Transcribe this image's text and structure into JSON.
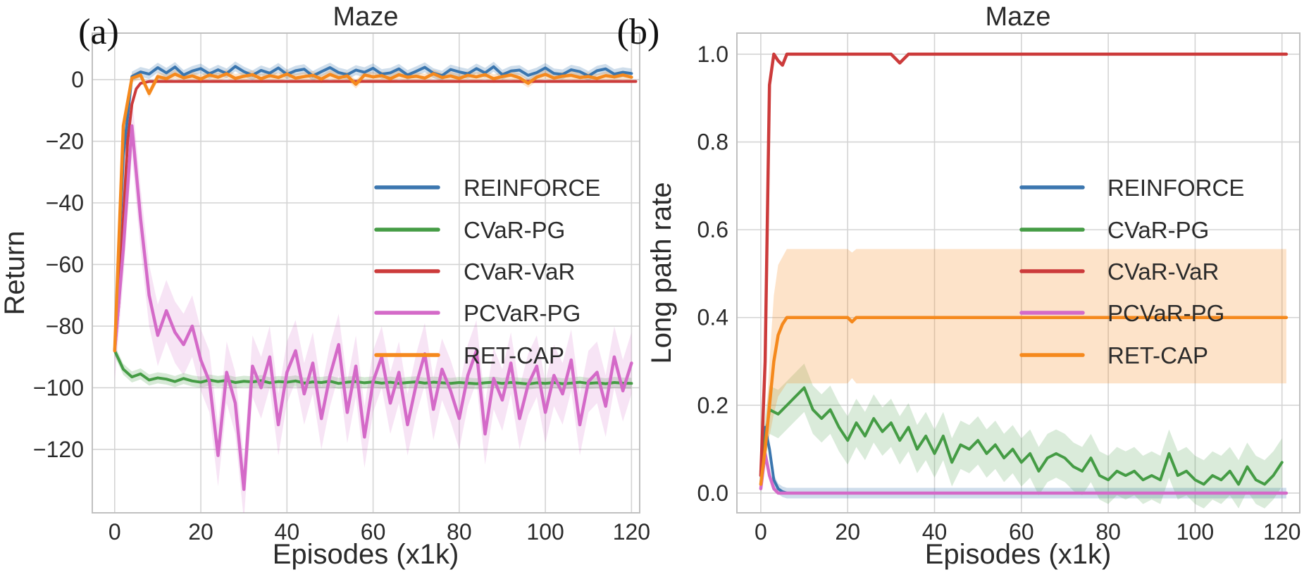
{
  "figure": {
    "background": "#ffffff",
    "grid_color": "#d4d4d4",
    "spine_color": "#c0c0c0",
    "text_color": "#2b2b2b"
  },
  "chart_data": [
    {
      "id": "a",
      "type": "line",
      "panel_letter": "(a)",
      "title": "Maze",
      "xlabel": "Episodes (x1k)",
      "ylabel": "Return",
      "xlim": [
        -5.2,
        121.9
      ],
      "ylim": [
        -140.6,
        15.1
      ],
      "grid": true,
      "legend_position": "center-right-inside",
      "xticks": {
        "values": [
          0,
          20,
          40,
          60,
          80,
          100,
          120
        ],
        "labels": [
          "0",
          "20",
          "40",
          "60",
          "80",
          "100",
          "120"
        ]
      },
      "yticks": {
        "values": [
          0,
          -20,
          -40,
          -60,
          -80,
          -100,
          -120
        ],
        "labels": [
          "0",
          "−20",
          "−40",
          "−60",
          "−80",
          "−100",
          "−120"
        ]
      },
      "legend": [
        {
          "label": "REINFORCE",
          "color": "#3b76af"
        },
        {
          "label": "CVaR-PG",
          "color": "#459c45"
        },
        {
          "label": "CVaR-VaR",
          "color": "#cc3b3b"
        },
        {
          "label": "PCVaR-PG",
          "color": "#d46ac8"
        },
        {
          "label": "RET-CAP",
          "color": "#f5891d"
        }
      ],
      "series": [
        {
          "name": "REINFORCE",
          "color": "#3b76af",
          "width": 4,
          "x": {
            "start": 0,
            "step": 2
          },
          "y": [
            -88,
            -25,
            1.0,
            2.5,
            1.8,
            3.9,
            2.2,
            4.1,
            1.5,
            2.8,
            3.6,
            1.9,
            3.2,
            2.0,
            4.3,
            2.6,
            1.4,
            3.0,
            2.1,
            3.8,
            1.7,
            2.9,
            3.4,
            1.2,
            2.6,
            3.9,
            2.3,
            1.6,
            3.1,
            2.4,
            3.7,
            1.8,
            2.2,
            3.5,
            1.5,
            2.7,
            4.0,
            2.1,
            1.3,
            3.3,
            2.5,
            1.9,
            3.6,
            2.2,
            4.2,
            1.6,
            2.8,
            3.1,
            1.4,
            2.3,
            3.8,
            2.0,
            1.7,
            3.2,
            2.6,
            1.2,
            2.9,
            3.5,
            1.8,
            2.4,
            2.0
          ],
          "band": {
            "hw": 1.6,
            "alpha": 0.25
          }
        },
        {
          "name": "CVaR-PG",
          "color": "#459c45",
          "width": 4,
          "x": {
            "start": 0,
            "step": 2
          },
          "y": [
            -88,
            -94,
            -96.5,
            -95.5,
            -97.5,
            -96.8,
            -97.2,
            -98,
            -97,
            -97.8,
            -98.2,
            -97.5,
            -98,
            -97.6,
            -98.3,
            -97.9,
            -98.1,
            -97.7,
            -98.4,
            -98,
            -98.2,
            -97.8,
            -98.5,
            -98.1,
            -98.3,
            -97.9,
            -98.6,
            -98.2,
            -98,
            -98.4,
            -98.1,
            -98.5,
            -98.2,
            -98.6,
            -98.3,
            -98.1,
            -98.5,
            -98.2,
            -98.4,
            -98.6,
            -98.3,
            -98.5,
            -98.7,
            -98.4,
            -98.2,
            -98.6,
            -98.3,
            -98.5,
            -98.8,
            -98.4,
            -98.6,
            -98.3,
            -98.7,
            -98.5,
            -98.2,
            -98.6,
            -98.4,
            -98.7,
            -98.3,
            -98.5,
            -98.6
          ],
          "band": {
            "hw": 1.8,
            "alpha": 0.22
          }
        },
        {
          "name": "CVaR-VaR",
          "color": "#cc3b3b",
          "width": 4,
          "x": [
            0,
            1,
            2,
            3,
            4,
            5,
            6,
            8,
            121
          ],
          "y": [
            -88,
            -72,
            -45,
            -20,
            -8,
            -3,
            -1.2,
            -0.6,
            -0.6
          ]
        },
        {
          "name": "PCVaR-PG",
          "color": "#d46ac8",
          "width": 4.5,
          "x": {
            "start": 0,
            "step": 2
          },
          "y": [
            -88,
            -55,
            -15,
            -45,
            -70,
            -83,
            -75,
            -82,
            -86,
            -80,
            -91,
            -98,
            -122,
            -95,
            -105,
            -133,
            -93,
            -100,
            -90,
            -112,
            -95,
            -88,
            -102,
            -92,
            -110,
            -96,
            -86,
            -108,
            -93,
            -116,
            -98,
            -90,
            -105,
            -95,
            -112,
            -99,
            -89,
            -107,
            -94,
            -101,
            -110,
            -96,
            -88,
            -115,
            -97,
            -104,
            -92,
            -110,
            -99,
            -93,
            -108,
            -96,
            -102,
            -91,
            -112,
            -98,
            -95,
            -106,
            -90,
            -101,
            -92
          ],
          "band": {
            "hw": 10,
            "alpha": 0.18
          }
        },
        {
          "name": "RET-CAP",
          "color": "#f5891d",
          "width": 4.5,
          "x": {
            "start": 0,
            "step": 2
          },
          "y": [
            -88,
            -15,
            0.5,
            1.5,
            -4.5,
            1.0,
            0.3,
            1.8,
            0.6,
            1.2,
            0.2,
            1.5,
            0.8,
            1.9,
            0.4,
            1.1,
            1.6,
            0.3,
            1.3,
            0.7,
            1.8,
            0.5,
            1.0,
            1.4,
            0.2,
            1.7,
            0.6,
            1.2,
            -1.5,
            1.5,
            0.9,
            1.3,
            0.3,
            1.6,
            0.8,
            1.1,
            0.5,
            1.9,
            0.7,
            1.2,
            0.4,
            1.4,
            0.9,
            1.6,
            0.3,
            1.0,
            1.5,
            0.6,
            -1.2,
            0.8,
            1.7,
            0.5,
            1.1,
            1.4,
            0.7,
            1.0,
            0.4,
            1.3,
            0.9,
            1.5,
            0.8
          ],
          "band": {
            "hw": 1.4,
            "alpha": 0.22
          }
        }
      ]
    },
    {
      "id": "b",
      "type": "line",
      "panel_letter": "(b)",
      "title": "Maze",
      "xlabel": "Episodes (x1k)",
      "ylabel": "Long path rate",
      "xlim": [
        -5.5,
        124.1
      ],
      "ylim": [
        -0.045,
        1.048
      ],
      "grid": true,
      "legend_position": "center-right-inside",
      "xticks": {
        "values": [
          0,
          20,
          40,
          60,
          80,
          100,
          120
        ],
        "labels": [
          "0",
          "20",
          "40",
          "60",
          "80",
          "100",
          "120"
        ]
      },
      "yticks": {
        "values": [
          0.0,
          0.2,
          0.4,
          0.6,
          0.8,
          1.0
        ],
        "labels": [
          "0.0",
          "0.2",
          "0.4",
          "0.6",
          "0.8",
          "1.0"
        ]
      },
      "legend": [
        {
          "label": "REINFORCE",
          "color": "#3b76af"
        },
        {
          "label": "CVaR-PG",
          "color": "#459c45"
        },
        {
          "label": "CVaR-VaR",
          "color": "#cc3b3b"
        },
        {
          "label": "PCVaR-PG",
          "color": "#d46ac8"
        },
        {
          "label": "RET-CAP",
          "color": "#f5891d"
        }
      ],
      "series": [
        {
          "name": "REINFORCE",
          "color": "#3b76af",
          "width": 4,
          "x": [
            0,
            1,
            2,
            3,
            4,
            5,
            6,
            121
          ],
          "y": [
            0.02,
            0.15,
            0.1,
            0.03,
            0.01,
            0.003,
            0.0,
            0.0
          ],
          "band": {
            "hw": 0.012,
            "alpha": 0.25
          }
        },
        {
          "name": "CVaR-PG",
          "color": "#459c45",
          "width": 4,
          "x": {
            "start": 0,
            "step": 2
          },
          "y": [
            0.05,
            0.19,
            0.18,
            0.2,
            0.22,
            0.24,
            0.19,
            0.17,
            0.19,
            0.15,
            0.12,
            0.16,
            0.13,
            0.17,
            0.14,
            0.16,
            0.12,
            0.15,
            0.1,
            0.13,
            0.09,
            0.13,
            0.07,
            0.11,
            0.1,
            0.12,
            0.09,
            0.11,
            0.08,
            0.1,
            0.07,
            0.09,
            0.05,
            0.08,
            0.09,
            0.08,
            0.06,
            0.05,
            0.08,
            0.04,
            0.03,
            0.05,
            0.04,
            0.05,
            0.03,
            0.04,
            0.03,
            0.09,
            0.04,
            0.05,
            0.03,
            0.02,
            0.04,
            0.03,
            0.05,
            0.02,
            0.06,
            0.03,
            0.02,
            0.04,
            0.07
          ],
          "band": {
            "hw": 0.055,
            "alpha": 0.2
          }
        },
        {
          "name": "CVaR-VaR",
          "color": "#cc3b3b",
          "width": 4.5,
          "x": [
            0,
            1,
            2,
            3,
            4,
            5,
            6,
            8,
            30,
            32,
            34,
            121
          ],
          "y": [
            0.04,
            0.3,
            0.93,
            1.0,
            0.985,
            0.975,
            1.0,
            1.0,
            1.0,
            0.98,
            1.0,
            1.0
          ]
        },
        {
          "name": "PCVaR-PG",
          "color": "#d46ac8",
          "width": 4.5,
          "x": [
            0,
            1,
            2,
            3,
            4,
            121
          ],
          "y": [
            0.01,
            0.09,
            0.04,
            0.01,
            0.0,
            0.0
          ]
        },
        {
          "name": "RET-CAP",
          "color": "#f5891d",
          "width": 4.5,
          "x": [
            0,
            1,
            2,
            3,
            4,
            5,
            6,
            8,
            20,
            21,
            22,
            121
          ],
          "y": [
            0.02,
            0.1,
            0.2,
            0.3,
            0.36,
            0.385,
            0.4,
            0.4,
            0.4,
            0.39,
            0.4,
            0.4
          ],
          "band": {
            "x": [
              1,
              2,
              3,
              4,
              6,
              20,
              21,
              22,
              121
            ],
            "lo": [
              0.08,
              0.13,
              0.18,
              0.22,
              0.25,
              0.25,
              0.262,
              0.25,
              0.25
            ],
            "hi": [
              0.12,
              0.3,
              0.45,
              0.52,
              0.556,
              0.556,
              0.548,
              0.556,
              0.556
            ],
            "alpha": 0.24
          }
        }
      ]
    }
  ]
}
